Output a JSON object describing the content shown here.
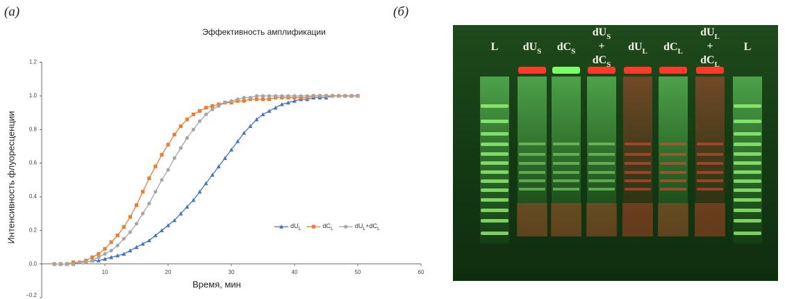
{
  "panel_labels": {
    "a": "(а)",
    "b": "(б)"
  },
  "chart_data": {
    "type": "line",
    "title": "Эффективность амплификации",
    "x_label": "Время, мин",
    "y_label": "Интенсивность флуоресценции",
    "x": [
      2,
      3,
      4,
      5,
      6,
      7,
      8,
      9,
      10,
      11,
      12,
      13,
      14,
      15,
      16,
      17,
      18,
      19,
      20,
      21,
      22,
      23,
      24,
      25,
      26,
      27,
      28,
      29,
      30,
      31,
      32,
      33,
      34,
      35,
      36,
      37,
      38,
      39,
      40,
      41,
      42,
      43,
      44,
      45,
      46,
      47,
      48,
      49,
      50
    ],
    "series": [
      {
        "name": [
          [
            "dU",
            "L"
          ]
        ],
        "color": "#4472c4",
        "marker": "triangle",
        "values": [
          0,
          0,
          0,
          0,
          0.01,
          0.01,
          0.02,
          0.02,
          0.03,
          0.04,
          0.05,
          0.06,
          0.08,
          0.1,
          0.12,
          0.14,
          0.17,
          0.2,
          0.23,
          0.26,
          0.3,
          0.34,
          0.38,
          0.43,
          0.48,
          0.53,
          0.58,
          0.63,
          0.68,
          0.73,
          0.78,
          0.82,
          0.86,
          0.89,
          0.91,
          0.93,
          0.95,
          0.96,
          0.97,
          0.98,
          0.98,
          0.99,
          0.99,
          0.99,
          1,
          1,
          1,
          1,
          1
        ]
      },
      {
        "name": [
          [
            "dC",
            "L"
          ]
        ],
        "color": "#ed7d31",
        "marker": "square",
        "values": [
          0,
          0,
          0,
          0.01,
          0.01,
          0.02,
          0.04,
          0.06,
          0.09,
          0.13,
          0.17,
          0.22,
          0.28,
          0.35,
          0.43,
          0.51,
          0.58,
          0.65,
          0.71,
          0.77,
          0.82,
          0.86,
          0.89,
          0.91,
          0.93,
          0.94,
          0.95,
          0.96,
          0.96,
          0.97,
          0.97,
          0.98,
          0.98,
          0.98,
          0.98,
          0.99,
          0.99,
          0.99,
          0.99,
          0.99,
          0.99,
          1,
          1,
          1,
          1,
          1,
          1,
          1,
          1
        ]
      },
      {
        "name": [
          [
            "dU",
            "L"
          ],
          [
            "+dC",
            "L"
          ]
        ],
        "color": "#a5a5a5",
        "marker": "circle",
        "values": [
          0,
          0,
          0,
          0,
          0.01,
          0.01,
          0.02,
          0.04,
          0.06,
          0.08,
          0.11,
          0.15,
          0.19,
          0.24,
          0.3,
          0.36,
          0.43,
          0.5,
          0.56,
          0.63,
          0.69,
          0.75,
          0.8,
          0.85,
          0.89,
          0.92,
          0.94,
          0.96,
          0.97,
          0.98,
          0.99,
          0.99,
          1,
          1,
          1,
          1,
          1,
          1,
          1,
          1,
          1,
          1,
          1,
          1,
          1,
          1,
          1,
          1,
          1
        ]
      }
    ],
    "xlim": [
      0,
      60
    ],
    "xticks": [
      10,
      20,
      30,
      40,
      50,
      60
    ],
    "ylim": [
      -0.2,
      1.2
    ],
    "yticks": [
      {
        "value": -0.2,
        "label": "−0.2"
      },
      {
        "value": 0,
        "label": "0.0"
      },
      0.2,
      0.4,
      0.6,
      0.8,
      {
        "value": 1,
        "label": "1.0"
      },
      1.2
    ]
  },
  "gel": {
    "lanes": [
      {
        "lines": [
          [
            "L"
          ]
        ]
      },
      {
        "lines": [
          [
            "dU",
            "S"
          ]
        ]
      },
      {
        "lines": [
          [
            "dC",
            "S"
          ]
        ]
      },
      {
        "lines": [
          [
            "dU",
            "S"
          ],
          [
            "+"
          ],
          [
            "dC",
            "S"
          ]
        ]
      },
      {
        "lines": [
          [
            "dU",
            "L"
          ]
        ]
      },
      {
        "lines": [
          [
            "dC",
            "L"
          ]
        ]
      },
      {
        "lines": [
          [
            "dU",
            "L"
          ],
          [
            "+"
          ],
          [
            "dC",
            "L"
          ]
        ]
      },
      {
        "lines": [
          [
            "L"
          ]
        ]
      }
    ]
  }
}
